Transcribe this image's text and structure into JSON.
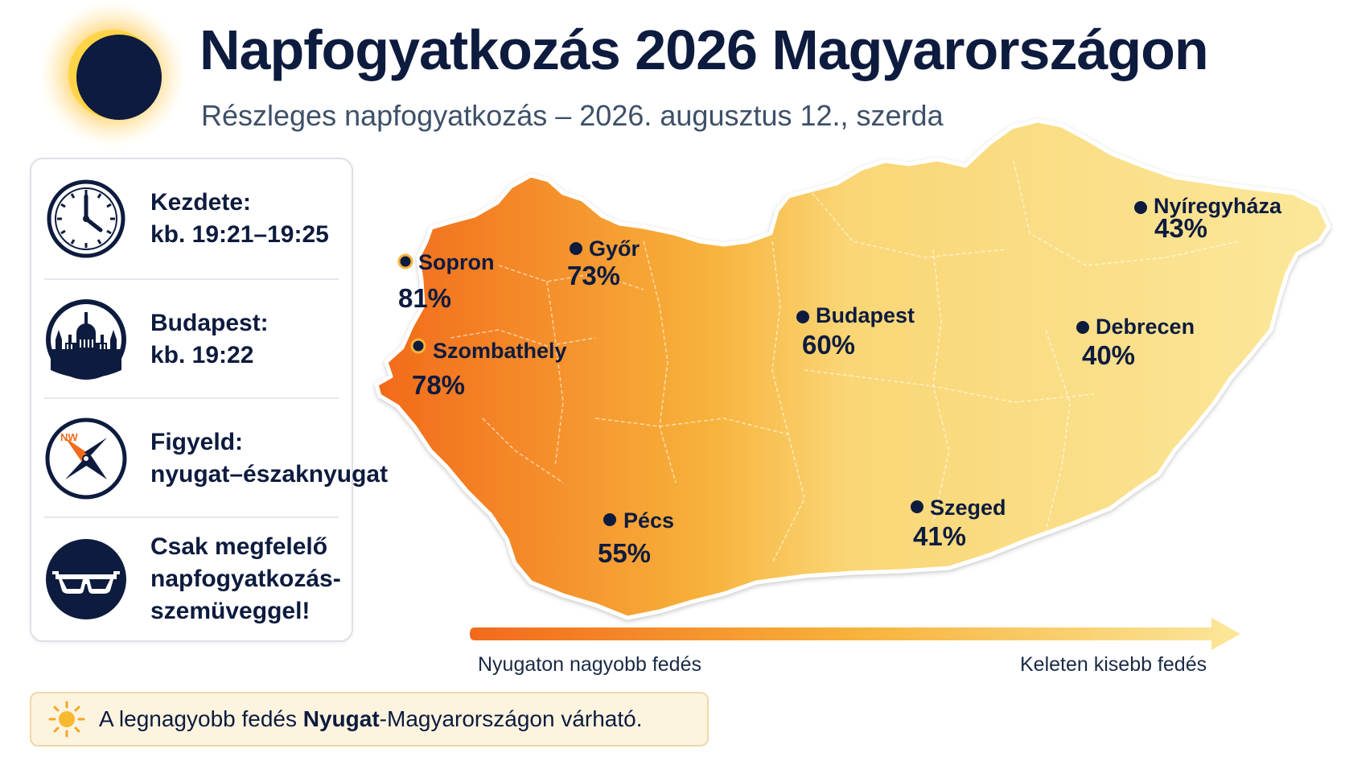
{
  "header": {
    "title": "Napfogyatkozás 2026 Magyarországon",
    "subtitle": "Részleges napfogyatkozás – 2026. augusztus 12., szerda"
  },
  "info": {
    "start": {
      "label": "Kezdete:",
      "value": "kb. 19:21–19:25",
      "icon": "clock-icon"
    },
    "budapest": {
      "label": "Budapest:",
      "value": "kb. 19:22",
      "icon": "parliament-icon"
    },
    "direction": {
      "label": "Figyeld:",
      "value": "nyugat–északnyugat",
      "icon": "compass-icon",
      "compass_label": "NW"
    },
    "safety": {
      "line1": "Csak megfelelő",
      "line2": "napfogyatkozás-",
      "line3": "szemüveggel!",
      "icon": "eclipse-glasses-icon"
    }
  },
  "map": {
    "cities": [
      {
        "name": "Sopron",
        "coverage": "81%"
      },
      {
        "name": "Győr",
        "coverage": "73%"
      },
      {
        "name": "Szombathely",
        "coverage": "78%"
      },
      {
        "name": "Budapest",
        "coverage": "60%"
      },
      {
        "name": "Pécs",
        "coverage": "55%"
      },
      {
        "name": "Szeged",
        "coverage": "41%"
      },
      {
        "name": "Debrecen",
        "coverage": "40%"
      },
      {
        "name": "Nyíregyháza",
        "coverage": "43%"
      }
    ],
    "colors": {
      "high": "#f26a1b",
      "mid": "#f7b23b",
      "low": "#fbe79a"
    }
  },
  "legend": {
    "left": "Nyugaton nagyobb fedés",
    "right": "Keleten kisebb fedés"
  },
  "note": {
    "before": "A legnagyobb fedés ",
    "bold": "Nyugat",
    "after": "-Magyarországon várható."
  }
}
